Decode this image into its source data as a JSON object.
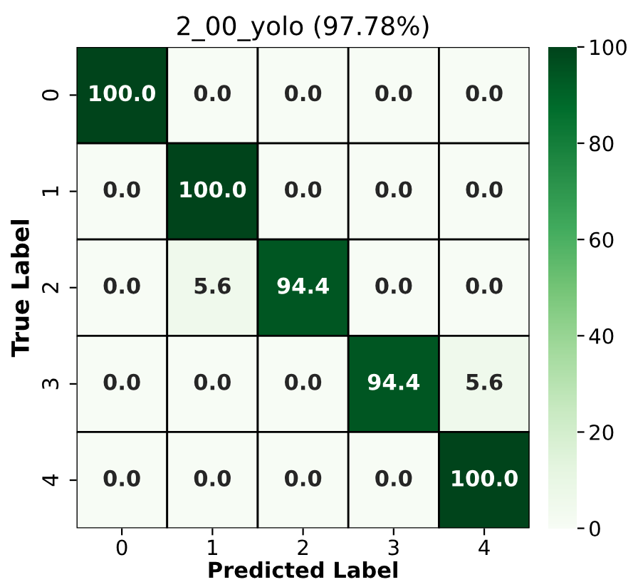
{
  "chart_data": {
    "type": "heatmap",
    "title": "2_00_yolo (97.78%)",
    "xlabel": "Predicted Label",
    "ylabel": "True Label",
    "categories": [
      "0",
      "1",
      "2",
      "3",
      "4"
    ],
    "y_categories": [
      "0",
      "1",
      "2",
      "3",
      "4"
    ],
    "cells": [
      [
        100.0,
        0.0,
        0.0,
        0.0,
        0.0
      ],
      [
        0.0,
        100.0,
        0.0,
        0.0,
        0.0
      ],
      [
        0.0,
        5.6,
        94.4,
        0.0,
        0.0
      ],
      [
        0.0,
        0.0,
        0.0,
        94.4,
        5.6
      ],
      [
        0.0,
        0.0,
        0.0,
        0.0,
        100.0
      ]
    ],
    "cell_labels": [
      [
        "100.0",
        "0.0",
        "0.0",
        "0.0",
        "0.0"
      ],
      [
        "0.0",
        "100.0",
        "0.0",
        "0.0",
        "0.0"
      ],
      [
        "0.0",
        "5.6",
        "94.4",
        "0.0",
        "0.0"
      ],
      [
        "0.0",
        "0.0",
        "0.0",
        "94.4",
        "5.6"
      ],
      [
        "0.0",
        "0.0",
        "0.0",
        "0.0",
        "100.0"
      ]
    ],
    "clim": [
      0,
      100
    ],
    "cticks": [
      0,
      20,
      40,
      60,
      80,
      100
    ]
  }
}
